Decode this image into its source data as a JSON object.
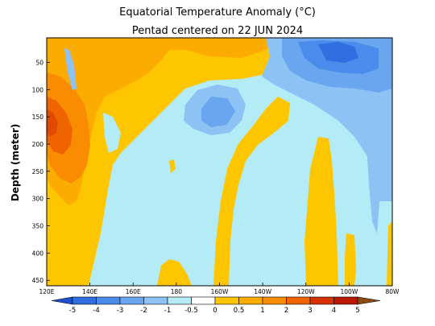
{
  "chart_data": {
    "type": "heatmap",
    "title": "Equatorial Temperature Anomaly (°C)",
    "subtitle": "Pentad centered on 22 JUN 2024",
    "ylabel": "Depth (meter)",
    "x_ticks": [
      "120E",
      "140E",
      "160E",
      "180",
      "160W",
      "140W",
      "120W",
      "100W",
      "80W"
    ],
    "x_range": [
      120,
      280
    ],
    "y_ticks": [
      50,
      100,
      150,
      200,
      250,
      300,
      350,
      400,
      450
    ],
    "y_range": [
      5,
      460
    ],
    "colorbar": {
      "labels": [
        "-5",
        "-4",
        "-3",
        "-2",
        "-1",
        "-0.5",
        "0",
        "0.5",
        "1",
        "2",
        "3",
        "4",
        "5"
      ],
      "colors": [
        "#1e4fd0",
        "#2f6fe0",
        "#4a8ceb",
        "#6aa6f0",
        "#8cc3f4",
        "#b3ecf6",
        "#ffffff",
        "#fec600",
        "#fcab00",
        "#f98c00",
        "#f06400",
        "#d43000",
        "#b81800",
        "#8c4a10"
      ]
    }
  }
}
